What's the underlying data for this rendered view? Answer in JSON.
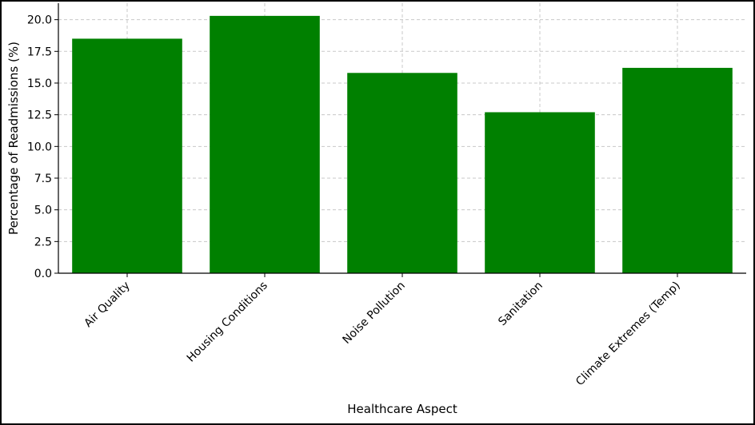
{
  "chart_data": {
    "type": "bar",
    "title": "",
    "xlabel": "Healthcare Aspect",
    "ylabel": "Percentage of Readmissions (%)",
    "categories": [
      "Air Quality",
      "Housing Conditions",
      "Noise Pollution",
      "Sanitation",
      "Climate Extremes (Temp)"
    ],
    "values": [
      18.5,
      20.3,
      15.8,
      12.7,
      16.2
    ],
    "ylim": [
      0,
      21.3
    ],
    "yticks": [
      "0.0",
      "2.5",
      "5.0",
      "7.5",
      "10.0",
      "12.5",
      "15.0",
      "17.5",
      "20.0"
    ],
    "grid": true,
    "bar_color": "#008000",
    "grid_color": "#c8c8c8"
  }
}
